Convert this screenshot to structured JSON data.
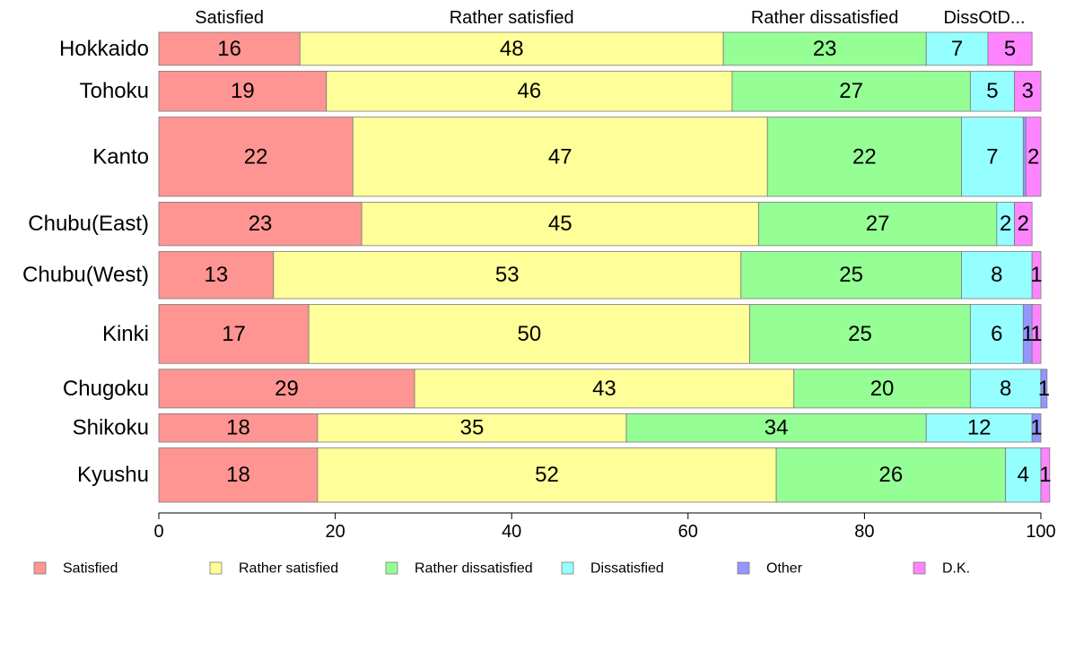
{
  "chart_data": {
    "type": "bar",
    "orientation": "horizontal",
    "stacked": true,
    "variable_width": true,
    "categories": [
      "Hokkaido",
      "Tohoku",
      "Kanto",
      "Chubu(East)",
      "Chubu(West)",
      "Kinki",
      "Chugoku",
      "Shikoku",
      "Kyushu"
    ],
    "series": [
      {
        "name": "Satisfied",
        "color": "#ff9593",
        "values": [
          16,
          19,
          22,
          23,
          13,
          17,
          29,
          18,
          18
        ],
        "value_labels": [
          "16",
          "19",
          "22",
          "23",
          "13",
          "17",
          "29",
          "18",
          "18"
        ]
      },
      {
        "name": "Rather satisfied",
        "color": "#ffff99",
        "values": [
          48,
          46,
          47,
          45,
          53,
          50,
          43,
          35,
          52
        ],
        "value_labels": [
          "48",
          "46",
          "47",
          "45",
          "53",
          "50",
          "43",
          "35",
          "52"
        ]
      },
      {
        "name": "Rather dissatisfied",
        "color": "#95ff95",
        "values": [
          23,
          27,
          22,
          27,
          25,
          25,
          20,
          34,
          26
        ],
        "value_labels": [
          "23",
          "27",
          "22",
          "27",
          "25",
          "25",
          "20",
          "34",
          "26"
        ]
      },
      {
        "name": "Dissatisfied",
        "color": "#95ffff",
        "values": [
          7,
          5,
          7,
          2,
          8,
          6,
          8,
          12,
          4
        ],
        "value_labels": [
          "7",
          "5",
          "7",
          "2",
          "8",
          "6",
          "8",
          "12",
          "4"
        ]
      },
      {
        "name": "Other",
        "color": "#9595ff",
        "values": [
          0,
          0,
          0.3,
          0,
          0,
          1,
          0.7,
          1,
          0
        ],
        "value_labels": [
          "",
          "",
          "",
          "",
          "",
          "1",
          "1",
          "1",
          ""
        ]
      },
      {
        "name": "D.K.",
        "color": "#ff85ff",
        "values": [
          5,
          3,
          1.7,
          2,
          1,
          1,
          0,
          0,
          1
        ],
        "value_labels": [
          "5",
          "3",
          "2",
          "2",
          "1",
          "1",
          "",
          "",
          "1"
        ]
      }
    ],
    "row_weights": [
      0.7,
      0.85,
      1.68,
      0.92,
      1.0,
      1.25,
      0.82,
      0.6,
      1.15
    ],
    "top_labels": [
      "Satisfied",
      "Rather satisfied",
      "Rather dissatisfied",
      "DissOtD..."
    ],
    "xlim": [
      0,
      100
    ],
    "xticks": [
      "0",
      "20",
      "40",
      "60",
      "80",
      "100"
    ],
    "xlabel": "",
    "ylabel": "",
    "title": "",
    "grid": false,
    "legend": {
      "position": "bottom",
      "items": [
        "Satisfied",
        "Rather satisfied",
        "Rather dissatisfied",
        "Dissatisfied",
        "Other",
        "D.K."
      ]
    }
  }
}
